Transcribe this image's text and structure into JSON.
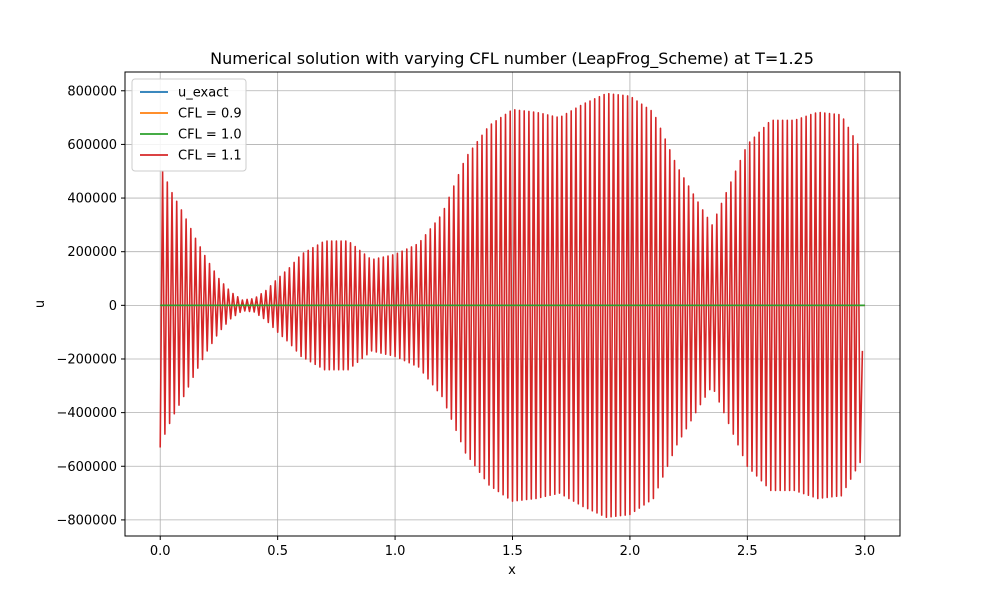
{
  "chart_data": {
    "type": "line",
    "title": "Numerical solution with varying CFL number (LeapFrog_Scheme) at T=1.25",
    "xlabel": "x",
    "ylabel": "u",
    "xlim": [
      -0.15,
      3.15
    ],
    "ylim": [
      -860000,
      870000
    ],
    "x_ticks": [
      0.0,
      0.5,
      1.0,
      1.5,
      2.0,
      2.5,
      3.0
    ],
    "x_tick_labels": [
      "0.0",
      "0.5",
      "1.0",
      "1.5",
      "2.0",
      "2.5",
      "3.0"
    ],
    "y_ticks": [
      -800000,
      -600000,
      -400000,
      -200000,
      0,
      200000,
      400000,
      600000,
      800000
    ],
    "y_tick_labels": [
      "−800000",
      "−600000",
      "−400000",
      "−200000",
      "0",
      "200000",
      "400000",
      "600000",
      "800000"
    ],
    "grid": true,
    "legend_position": "top-left",
    "series": [
      {
        "name": "u_exact",
        "color": "#1f77b4",
        "style": "flat",
        "points": [
          [
            0.0,
            0.0
          ],
          [
            3.0,
            0.0
          ]
        ]
      },
      {
        "name": "CFL = 0.9",
        "color": "#ff7f0e",
        "style": "flat",
        "points": [
          [
            0.0,
            0.0
          ],
          [
            3.0,
            0.0
          ]
        ]
      },
      {
        "name": "CFL = 1.0",
        "color": "#2ca02c",
        "style": "flat",
        "points": [
          [
            0.0,
            0.0
          ],
          [
            3.0,
            0.0
          ]
        ]
      },
      {
        "name": "CFL = 1.1",
        "color": "#d62728",
        "style": "oscillating",
        "x_start": 0.0,
        "x_end": 2.99,
        "num_points": 300,
        "start_value": -530000,
        "end_value": -170000,
        "envelope": [
          [
            0.0,
            520000
          ],
          [
            0.05,
            420000
          ],
          [
            0.1,
            340000
          ],
          [
            0.15,
            250000
          ],
          [
            0.2,
            170000
          ],
          [
            0.25,
            100000
          ],
          [
            0.3,
            50000
          ],
          [
            0.35,
            20000
          ],
          [
            0.4,
            25000
          ],
          [
            0.45,
            55000
          ],
          [
            0.5,
            100000
          ],
          [
            0.55,
            140000
          ],
          [
            0.6,
            190000
          ],
          [
            0.7,
            240000
          ],
          [
            0.8,
            240000
          ],
          [
            0.9,
            170000
          ],
          [
            1.0,
            190000
          ],
          [
            1.1,
            230000
          ],
          [
            1.2,
            340000
          ],
          [
            1.3,
            550000
          ],
          [
            1.4,
            670000
          ],
          [
            1.5,
            730000
          ],
          [
            1.6,
            720000
          ],
          [
            1.7,
            700000
          ],
          [
            1.8,
            750000
          ],
          [
            1.9,
            790000
          ],
          [
            2.0,
            780000
          ],
          [
            2.1,
            720000
          ],
          [
            2.2,
            520000
          ],
          [
            2.3,
            370000
          ],
          [
            2.35,
            300000
          ],
          [
            2.4,
            400000
          ],
          [
            2.5,
            600000
          ],
          [
            2.6,
            690000
          ],
          [
            2.7,
            690000
          ],
          [
            2.8,
            720000
          ],
          [
            2.9,
            710000
          ],
          [
            2.99,
            570000
          ]
        ]
      }
    ]
  }
}
